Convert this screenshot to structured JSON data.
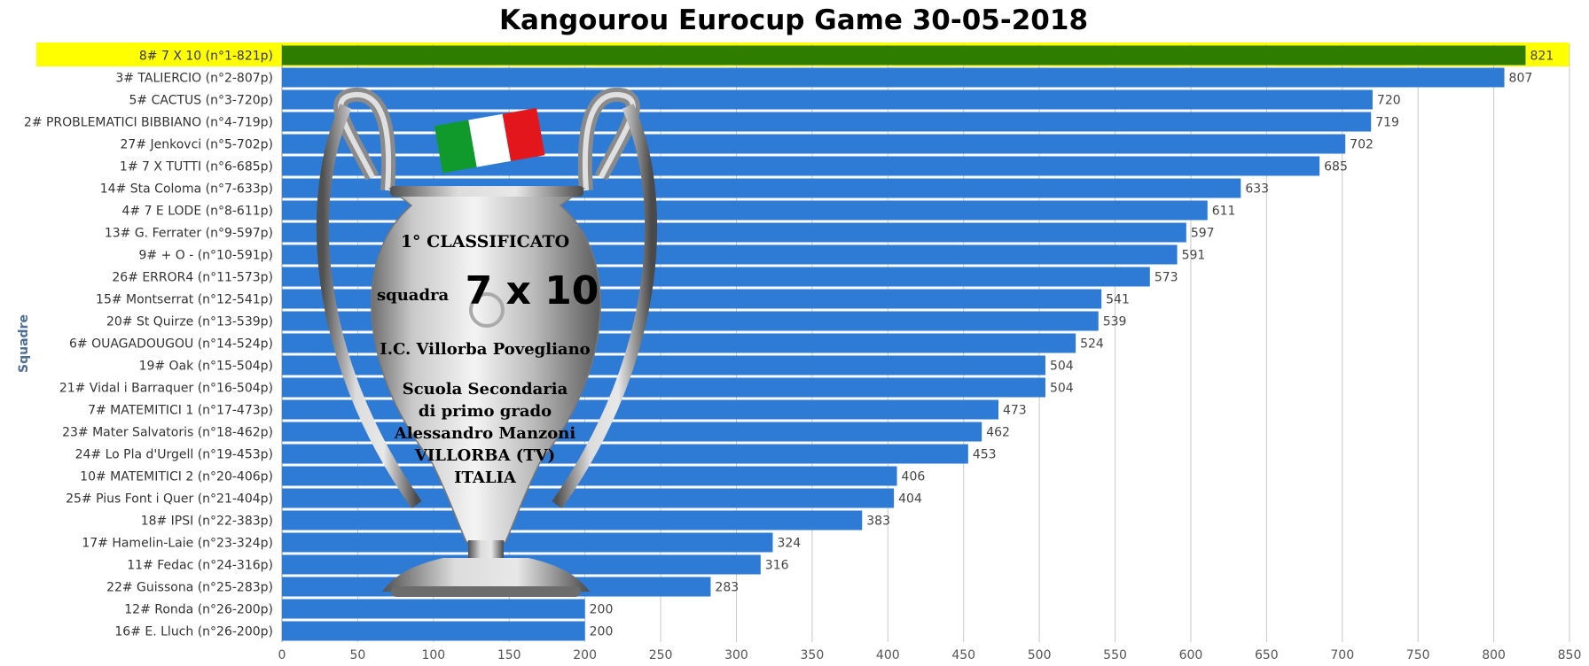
{
  "chart_data": {
    "type": "bar",
    "orientation": "horizontal",
    "title": "Kangourou Eurocup Game 30-05-2018",
    "xlabel": "",
    "ylabel": "Squadre",
    "xlim": [
      0,
      850
    ],
    "xticks": [
      "0",
      "50",
      "100",
      "150",
      "200",
      "250",
      "300",
      "350",
      "400",
      "450",
      "500",
      "550",
      "600",
      "650",
      "700",
      "750",
      "800",
      "850"
    ],
    "grid": "vertical",
    "highlight_index": 0,
    "colors": {
      "bar": "#2e7bd6",
      "highlight_bar": "#2f7d00",
      "highlight_row": "#ffff00",
      "grid": "#c8c8c8"
    },
    "categories": [
      "8# 7 X 10 (n°1-821p)",
      "3# TALIERCIO (n°2-807p)",
      "5# CACTUS (n°3-720p)",
      "2# PROBLEMATICI BIBBIANO (n°4-719p)",
      "27# Jenkovci (n°5-702p)",
      "1# 7 X TUTTI (n°6-685p)",
      "14# Sta Coloma (n°7-633p)",
      "4# 7 E LODE (n°8-611p)",
      "13# G. Ferrater (n°9-597p)",
      "9# + O - (n°10-591p)",
      "26# ERROR4 (n°11-573p)",
      "15# Montserrat (n°12-541p)",
      "20# St Quirze (n°13-539p)",
      "6# OUAGADOUGOU (n°14-524p)",
      "19# Oak (n°15-504p)",
      "21# Vidal i Barraquer (n°16-504p)",
      "7# MATEMITICI 1 (n°17-473p)",
      "23# Mater Salvatoris (n°18-462p)",
      "24# Lo Pla d'Urgell (n°19-453p)",
      "10# MATEMITICI 2 (n°20-406p)",
      "25# Pius Font i Quer (n°21-404p)",
      "18# IPSI (n°22-383p)",
      "17# Hamelin-Laie (n°23-324p)",
      "11# Fedac (n°24-316p)",
      "22# Guissona (n°25-283p)",
      "12# Ronda (n°26-200p)",
      "16# E. Lluch (n°26-200p)"
    ],
    "values": [
      821,
      807,
      720,
      719,
      702,
      685,
      633,
      611,
      597,
      591,
      573,
      541,
      539,
      524,
      504,
      504,
      473,
      462,
      453,
      406,
      404,
      383,
      324,
      316,
      283,
      200,
      200
    ]
  },
  "trophy": {
    "line1": "1° CLASSIFICATO",
    "squadra": "squadra",
    "team": "7 x 10",
    "school": "I.C. Villorba Povegliano",
    "lines": [
      "Scuola Secondaria",
      "di primo grado",
      "Alessandro Manzoni",
      "VILLORBA (TV)",
      "ITALIA"
    ],
    "flag_colors": [
      "#119a2c",
      "#ffffff",
      "#e3161c"
    ]
  }
}
